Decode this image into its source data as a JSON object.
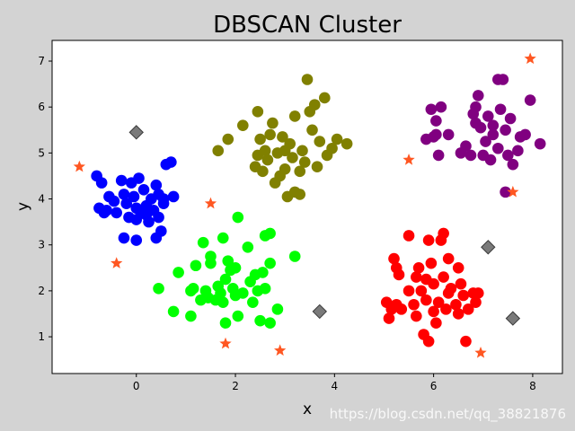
{
  "watermark": "https://blog.csdn.net/qq_38821876",
  "colors": {
    "figure_bg": "#d3d3d3",
    "axes_bg": "#ffffff",
    "cluster_blue": "#0000ff",
    "cluster_olive": "#808000",
    "cluster_purple": "#800080",
    "cluster_green": "#00ff00",
    "cluster_red": "#ff0000",
    "noise_star": "#ff5722",
    "core_diamond": "#7a7a7a"
  },
  "chart_data": {
    "type": "scatter",
    "title": "DBSCAN Cluster",
    "xlabel": "x",
    "ylabel": "y",
    "xlim": [
      -1.7,
      8.6
    ],
    "ylim": [
      0.2,
      7.45
    ],
    "xticks": [
      0,
      2,
      4,
      6,
      8
    ],
    "yticks": [
      1,
      2,
      3,
      4,
      5,
      6,
      7
    ],
    "grid": false,
    "legend": "none",
    "series": [
      {
        "color": "#0000ff",
        "marker": "circle",
        "points": [
          [
            -0.8,
            4.5
          ],
          [
            -0.7,
            4.35
          ],
          [
            -0.75,
            3.8
          ],
          [
            -0.6,
            3.75
          ],
          [
            -0.55,
            4.05
          ],
          [
            -0.45,
            3.95
          ],
          [
            -0.4,
            3.7
          ],
          [
            -0.3,
            4.4
          ],
          [
            -0.25,
            4.1
          ],
          [
            -0.2,
            3.9
          ],
          [
            -0.15,
            3.6
          ],
          [
            -0.25,
            3.15
          ],
          [
            -0.1,
            4.35
          ],
          [
            -0.05,
            4.05
          ],
          [
            0.0,
            3.8
          ],
          [
            0.05,
            4.45
          ],
          [
            0.0,
            3.55
          ],
          [
            0.1,
            3.7
          ],
          [
            0.15,
            4.2
          ],
          [
            0.2,
            3.85
          ],
          [
            0.25,
            3.5
          ],
          [
            0.3,
            4.0
          ],
          [
            0.35,
            3.75
          ],
          [
            0.4,
            4.3
          ],
          [
            0.45,
            4.1
          ],
          [
            0.45,
            3.6
          ],
          [
            0.5,
            3.3
          ],
          [
            0.55,
            3.9
          ],
          [
            0.55,
            4.0
          ],
          [
            0.6,
            4.75
          ],
          [
            0.7,
            4.8
          ],
          [
            0.75,
            4.05
          ],
          [
            0.0,
            3.1
          ],
          [
            0.4,
            3.15
          ],
          [
            -0.65,
            3.7
          ],
          [
            0.2,
            3.65
          ]
        ]
      },
      {
        "color": "#808000",
        "marker": "circle",
        "points": [
          [
            1.65,
            5.05
          ],
          [
            1.85,
            5.3
          ],
          [
            2.15,
            5.6
          ],
          [
            2.45,
            5.9
          ],
          [
            2.45,
            4.95
          ],
          [
            2.5,
            5.3
          ],
          [
            2.55,
            4.6
          ],
          [
            2.6,
            5.05
          ],
          [
            2.65,
            4.85
          ],
          [
            2.7,
            5.4
          ],
          [
            2.75,
            5.65
          ],
          [
            2.8,
            4.35
          ],
          [
            2.85,
            5.0
          ],
          [
            2.9,
            4.5
          ],
          [
            2.95,
            5.35
          ],
          [
            3.0,
            4.65
          ],
          [
            3.05,
            4.05
          ],
          [
            3.1,
            5.2
          ],
          [
            3.15,
            4.9
          ],
          [
            3.2,
            4.15
          ],
          [
            3.2,
            5.8
          ],
          [
            3.3,
            4.6
          ],
          [
            3.35,
            5.05
          ],
          [
            3.4,
            4.8
          ],
          [
            3.45,
            6.6
          ],
          [
            3.5,
            5.9
          ],
          [
            3.55,
            5.5
          ],
          [
            3.6,
            6.05
          ],
          [
            3.65,
            4.7
          ],
          [
            3.7,
            5.25
          ],
          [
            3.8,
            6.2
          ],
          [
            3.85,
            4.95
          ],
          [
            3.95,
            5.1
          ],
          [
            4.05,
            5.3
          ],
          [
            4.25,
            5.2
          ],
          [
            2.4,
            4.7
          ],
          [
            3.0,
            5.05
          ],
          [
            3.3,
            4.1
          ]
        ]
      },
      {
        "color": "#800080",
        "marker": "circle",
        "points": [
          [
            5.85,
            5.3
          ],
          [
            5.95,
            5.95
          ],
          [
            6.0,
            5.35
          ],
          [
            6.05,
            5.4
          ],
          [
            6.05,
            5.7
          ],
          [
            6.1,
            4.95
          ],
          [
            6.15,
            6.0
          ],
          [
            6.3,
            5.4
          ],
          [
            6.55,
            5.0
          ],
          [
            6.65,
            5.15
          ],
          [
            6.75,
            4.95
          ],
          [
            6.8,
            5.85
          ],
          [
            6.85,
            5.65
          ],
          [
            6.9,
            6.25
          ],
          [
            6.95,
            5.55
          ],
          [
            7.0,
            4.95
          ],
          [
            7.05,
            5.25
          ],
          [
            7.1,
            5.8
          ],
          [
            7.15,
            4.85
          ],
          [
            7.2,
            5.4
          ],
          [
            7.3,
            6.6
          ],
          [
            7.3,
            5.1
          ],
          [
            7.35,
            5.95
          ],
          [
            7.4,
            6.6
          ],
          [
            7.45,
            5.5
          ],
          [
            7.45,
            4.15
          ],
          [
            7.5,
            4.95
          ],
          [
            7.55,
            5.75
          ],
          [
            7.6,
            4.75
          ],
          [
            7.7,
            5.05
          ],
          [
            7.75,
            5.35
          ],
          [
            7.85,
            5.4
          ],
          [
            7.95,
            6.15
          ],
          [
            8.15,
            5.2
          ],
          [
            6.85,
            6.0
          ],
          [
            7.2,
            5.6
          ]
        ]
      },
      {
        "color": "#00ff00",
        "marker": "circle",
        "points": [
          [
            0.45,
            2.05
          ],
          [
            0.75,
            1.55
          ],
          [
            0.85,
            2.4
          ],
          [
            1.1,
            1.45
          ],
          [
            1.1,
            2.0
          ],
          [
            1.15,
            2.05
          ],
          [
            1.2,
            2.55
          ],
          [
            1.3,
            1.8
          ],
          [
            1.35,
            3.05
          ],
          [
            1.4,
            2.0
          ],
          [
            1.45,
            1.85
          ],
          [
            1.5,
            2.6
          ],
          [
            1.5,
            2.75
          ],
          [
            1.6,
            1.8
          ],
          [
            1.65,
            2.1
          ],
          [
            1.7,
            1.95
          ],
          [
            1.75,
            3.15
          ],
          [
            1.75,
            1.75
          ],
          [
            1.8,
            2.25
          ],
          [
            1.8,
            1.3
          ],
          [
            1.85,
            2.65
          ],
          [
            1.9,
            2.45
          ],
          [
            1.95,
            2.05
          ],
          [
            2.0,
            1.9
          ],
          [
            2.05,
            3.6
          ],
          [
            2.05,
            1.45
          ],
          [
            2.15,
            1.95
          ],
          [
            2.25,
            2.95
          ],
          [
            2.3,
            2.2
          ],
          [
            2.35,
            1.75
          ],
          [
            2.4,
            2.35
          ],
          [
            2.45,
            2.0
          ],
          [
            2.5,
            1.35
          ],
          [
            2.55,
            2.4
          ],
          [
            2.6,
            2.05
          ],
          [
            2.6,
            3.2
          ],
          [
            2.7,
            3.25
          ],
          [
            2.7,
            2.6
          ],
          [
            2.7,
            1.3
          ],
          [
            2.85,
            1.6
          ],
          [
            3.2,
            2.75
          ],
          [
            2.0,
            2.5
          ]
        ]
      },
      {
        "color": "#ff0000",
        "marker": "circle",
        "points": [
          [
            5.05,
            1.75
          ],
          [
            5.1,
            1.4
          ],
          [
            5.15,
            1.6
          ],
          [
            5.2,
            2.7
          ],
          [
            5.25,
            1.7
          ],
          [
            5.25,
            2.5
          ],
          [
            5.3,
            2.35
          ],
          [
            5.35,
            1.6
          ],
          [
            5.5,
            3.2
          ],
          [
            5.5,
            2.0
          ],
          [
            5.6,
            1.7
          ],
          [
            5.65,
            1.45
          ],
          [
            5.65,
            2.3
          ],
          [
            5.7,
            2.5
          ],
          [
            5.75,
            2.0
          ],
          [
            5.8,
            1.05
          ],
          [
            5.85,
            1.8
          ],
          [
            5.9,
            0.9
          ],
          [
            5.9,
            3.1
          ],
          [
            5.95,
            2.6
          ],
          [
            6.0,
            1.55
          ],
          [
            6.0,
            2.15
          ],
          [
            6.05,
            1.3
          ],
          [
            6.1,
            1.75
          ],
          [
            6.15,
            3.1
          ],
          [
            6.2,
            3.25
          ],
          [
            6.2,
            2.3
          ],
          [
            6.25,
            1.6
          ],
          [
            6.3,
            2.7
          ],
          [
            6.3,
            1.95
          ],
          [
            6.35,
            2.05
          ],
          [
            6.45,
            1.7
          ],
          [
            6.5,
            2.5
          ],
          [
            6.5,
            1.5
          ],
          [
            6.55,
            2.15
          ],
          [
            6.6,
            1.9
          ],
          [
            6.65,
            0.9
          ],
          [
            6.7,
            1.6
          ],
          [
            6.8,
            1.95
          ],
          [
            6.85,
            1.75
          ],
          [
            6.9,
            1.95
          ],
          [
            5.85,
            2.25
          ]
        ]
      },
      {
        "color": "#ff5722",
        "marker": "star",
        "points": [
          [
            -1.15,
            4.7
          ],
          [
            -0.4,
            2.6
          ],
          [
            1.5,
            3.9
          ],
          [
            1.8,
            0.85
          ],
          [
            2.9,
            0.7
          ],
          [
            5.5,
            4.85
          ],
          [
            7.95,
            7.05
          ],
          [
            7.6,
            4.15
          ],
          [
            6.95,
            0.65
          ]
        ]
      },
      {
        "color": "#7a7a7a",
        "marker": "diamond",
        "points": [
          [
            0.0,
            5.45
          ],
          [
            3.7,
            1.55
          ],
          [
            7.1,
            2.95
          ],
          [
            7.6,
            1.4
          ]
        ]
      }
    ]
  }
}
